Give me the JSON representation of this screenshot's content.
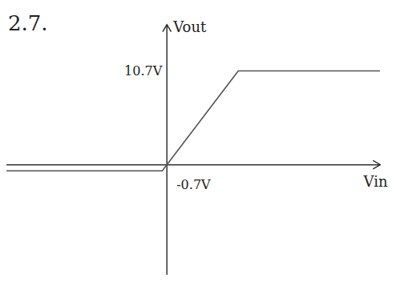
{
  "chart_data": {
    "type": "line",
    "title": "2.7.",
    "x_label": "Vin",
    "y_label": "Vout",
    "x": [
      -24,
      -0.7,
      10.7,
      32
    ],
    "values": [
      -0.7,
      -0.7,
      10.7,
      10.7
    ],
    "color": "#555555",
    "xlim": [
      -24,
      32
    ],
    "ylim": [
      -12.5,
      16
    ],
    "tick_labels": false,
    "annotations": [
      {
        "text": "10.7V",
        "value": 10.7
      },
      {
        "text": "-0.7V",
        "value": -0.7
      }
    ]
  }
}
